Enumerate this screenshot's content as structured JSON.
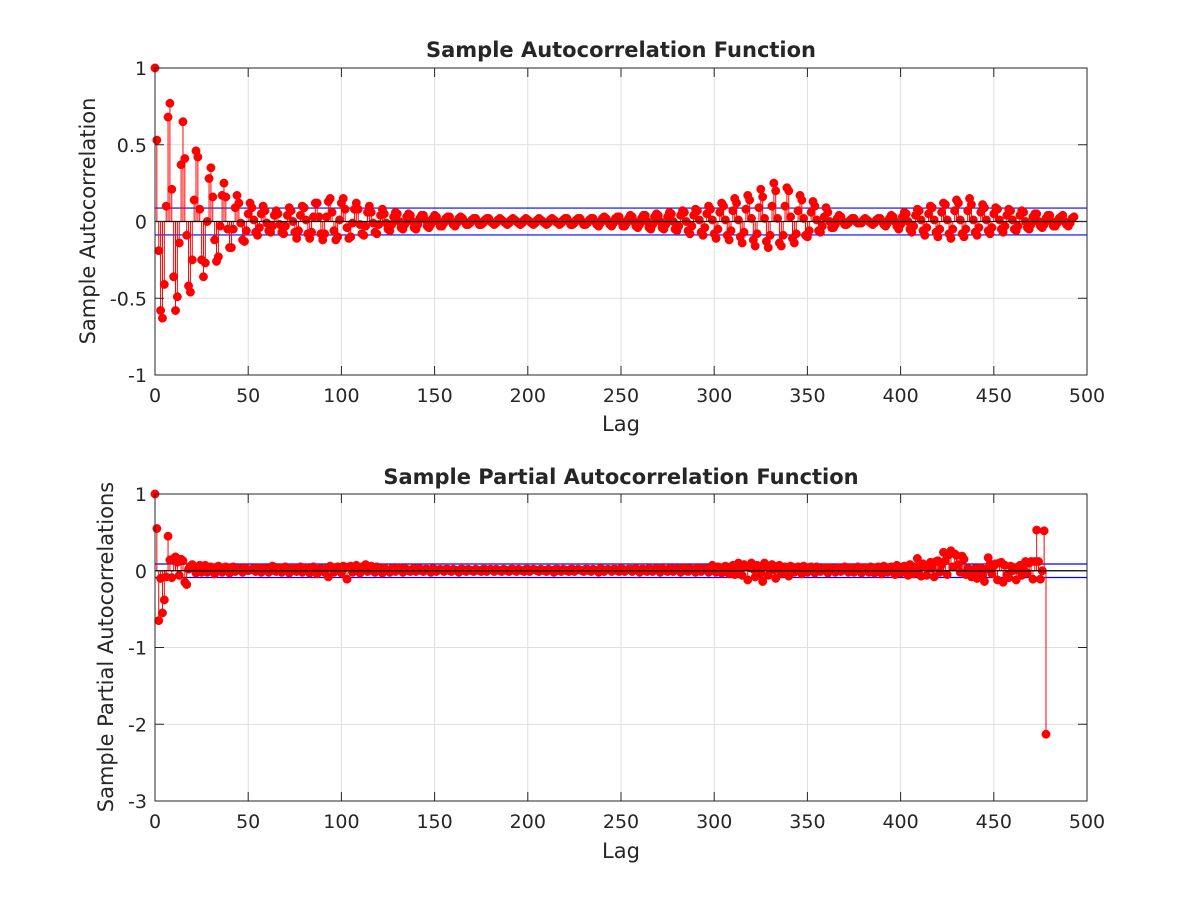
{
  "figure": {
    "background": "#ffffff",
    "colors": {
      "stem": "#ff0000",
      "bounds": "#0000ff",
      "grid": "#dfdfdf",
      "axis": "#262626",
      "zero_line": "#000000"
    }
  },
  "chart_data": [
    {
      "type": "stem",
      "title": "Sample Autocorrelation Function",
      "xlabel": "Lag",
      "ylabel": "Sample Autocorrelation",
      "xlim": [
        0,
        500
      ],
      "ylim": [
        -1,
        1
      ],
      "x_ticks": [
        0,
        50,
        100,
        150,
        200,
        250,
        300,
        350,
        400,
        450,
        500
      ],
      "x_tick_labels": [
        "0",
        "50",
        "100",
        "150",
        "200",
        "250",
        "300",
        "350",
        "400",
        "450",
        "500"
      ],
      "y_ticks": [
        -1,
        -0.5,
        0,
        0.5,
        1
      ],
      "y_tick_labels": [
        "-1",
        "-0.5",
        "0",
        "0.5",
        "1"
      ],
      "grid": true,
      "confidence_bound": 0.0877,
      "series": [
        {
          "lag_start": 0,
          "values": [
            1.0,
            0.53,
            -0.19,
            -0.58,
            -0.63,
            -0.41,
            0.1,
            0.68,
            0.77,
            0.21,
            -0.36,
            -0.58,
            -0.49,
            -0.14,
            0.37,
            0.65,
            0.41,
            -0.09,
            -0.42,
            -0.46,
            -0.25,
            0.14,
            0.46,
            0.42,
            0.08,
            -0.25,
            -0.36,
            -0.27,
            0.0,
            0.28,
            0.35,
            0.16,
            -0.12,
            -0.26,
            -0.23,
            -0.03,
            0.17,
            0.25,
            0.16,
            -0.05,
            -0.17,
            -0.17,
            -0.05,
            0.09,
            0.17,
            0.12,
            -0.01,
            -0.12,
            -0.13,
            -0.06,
            0.05,
            0.12,
            0.09,
            0.01,
            -0.07,
            -0.09,
            -0.04,
            0.05,
            0.1,
            0.07,
            -0.01,
            -0.06,
            -0.07,
            -0.03,
            0.04,
            0.07,
            0.05,
            -0.02,
            -0.07,
            -0.08,
            -0.03,
            0.04,
            0.09,
            0.07,
            0.0,
            -0.07,
            -0.11,
            -0.06,
            0.04,
            0.1,
            0.09,
            0.01,
            -0.08,
            -0.11,
            -0.07,
            0.03,
            0.12,
            0.12,
            0.03,
            -0.08,
            -0.12,
            -0.08,
            0.03,
            0.13,
            0.15,
            0.06,
            -0.06,
            -0.12,
            -0.1,
            0.01,
            0.12,
            0.15,
            0.08,
            -0.04,
            -0.11,
            -0.1,
            -0.01,
            0.08,
            0.12,
            0.08,
            -0.02,
            -0.08,
            -0.09,
            -0.03,
            0.06,
            0.1,
            0.06,
            -0.01,
            -0.07,
            -0.08,
            -0.02,
            0.04,
            0.08,
            0.05,
            -0.01,
            -0.05,
            -0.06,
            -0.02,
            0.03,
            0.06,
            0.05,
            0.0,
            -0.04,
            -0.05,
            -0.02,
            0.03,
            0.05,
            0.04,
            0.0,
            -0.04,
            -0.05,
            -0.02,
            0.02,
            0.04,
            0.04,
            0.01,
            -0.03,
            -0.04,
            -0.02,
            0.02,
            0.04,
            0.03,
            0.0,
            -0.03,
            -0.03,
            -0.01,
            0.02,
            0.03,
            0.03,
            0.0,
            -0.02,
            -0.03,
            -0.01,
            0.02,
            0.03,
            0.02,
            0.0,
            -0.02,
            -0.02,
            -0.01,
            0.01,
            0.02,
            0.02,
            0.0,
            -0.02,
            -0.02,
            -0.01,
            0.01,
            0.02,
            0.02,
            0.0,
            -0.01,
            -0.02,
            -0.01,
            0.01,
            0.02,
            0.01,
            0.0,
            -0.01,
            -0.02,
            -0.01,
            0.01,
            0.02,
            0.01,
            0.0,
            -0.01,
            -0.02,
            -0.01,
            0.01,
            0.02,
            0.01,
            0.0,
            -0.01,
            -0.02,
            -0.01,
            0.01,
            0.02,
            0.01,
            0.0,
            -0.01,
            -0.02,
            -0.01,
            0.01,
            0.02,
            0.01,
            0.0,
            -0.01,
            -0.02,
            -0.01,
            0.01,
            0.02,
            0.02,
            0.0,
            -0.02,
            -0.02,
            -0.01,
            0.01,
            0.02,
            0.02,
            0.0,
            -0.02,
            -0.02,
            -0.01,
            0.01,
            0.02,
            0.02,
            0.0,
            -0.02,
            -0.03,
            -0.01,
            0.02,
            0.03,
            0.02,
            0.0,
            -0.02,
            -0.03,
            -0.01,
            0.02,
            0.03,
            0.03,
            0.0,
            -0.03,
            -0.03,
            -0.01,
            0.02,
            0.04,
            0.03,
            0.0,
            -0.03,
            -0.04,
            -0.02,
            0.02,
            0.04,
            0.04,
            0.0,
            -0.04,
            -0.05,
            -0.02,
            0.03,
            0.05,
            0.04,
            0.0,
            -0.04,
            -0.05,
            -0.02,
            0.03,
            0.06,
            0.05,
            0.0,
            -0.05,
            -0.06,
            -0.03,
            0.04,
            0.07,
            0.06,
            0.0,
            -0.06,
            -0.08,
            -0.03,
            0.04,
            0.08,
            0.07,
            0.01,
            -0.07,
            -0.09,
            -0.04,
            0.05,
            0.1,
            0.08,
            0.01,
            -0.08,
            -0.11,
            -0.05,
            0.06,
            0.12,
            0.1,
            0.01,
            -0.09,
            -0.12,
            -0.06,
            0.07,
            0.15,
            0.12,
            0.01,
            -0.1,
            -0.14,
            -0.07,
            0.08,
            0.17,
            0.14,
            0.02,
            -0.12,
            -0.16,
            -0.08,
            0.09,
            0.21,
            0.16,
            0.02,
            -0.13,
            -0.17,
            -0.09,
            0.1,
            0.25,
            0.2,
            0.02,
            -0.14,
            -0.16,
            -0.09,
            0.1,
            0.22,
            0.2,
            0.03,
            -0.11,
            -0.14,
            -0.08,
            0.07,
            0.17,
            0.14,
            0.02,
            -0.09,
            -0.1,
            -0.06,
            0.06,
            0.13,
            0.1,
            0.01,
            -0.06,
            -0.07,
            -0.03,
            0.03,
            0.09,
            0.06,
            0.0,
            -0.04,
            -0.04,
            -0.02,
            0.02,
            0.04,
            0.03,
            0.0,
            -0.02,
            -0.02,
            -0.01,
            0.01,
            0.02,
            0.02,
            0.0,
            -0.01,
            -0.01,
            -0.01,
            0.01,
            0.02,
            0.01,
            0.0,
            -0.01,
            -0.02,
            -0.01,
            0.01,
            0.02,
            0.02,
            0.0,
            -0.02,
            -0.03,
            -0.01,
            0.02,
            0.04,
            0.03,
            0.0,
            -0.03,
            -0.05,
            -0.02,
            0.03,
            0.06,
            0.05,
            0.0,
            -0.05,
            -0.07,
            -0.03,
            0.04,
            0.08,
            0.07,
            0.01,
            -0.06,
            -0.09,
            -0.04,
            0.05,
            0.1,
            0.09,
            0.01,
            -0.07,
            -0.1,
            -0.05,
            0.06,
            0.12,
            0.11,
            0.01,
            -0.08,
            -0.11,
            -0.05,
            0.07,
            0.14,
            0.12,
            0.01,
            -0.08,
            -0.1,
            -0.05,
            0.07,
            0.15,
            0.11,
            0.01,
            -0.07,
            -0.09,
            -0.04,
            0.06,
            0.11,
            0.09,
            0.01,
            -0.06,
            -0.08,
            -0.04,
            0.05,
            0.09,
            0.08,
            0.01,
            -0.05,
            -0.07,
            -0.03,
            0.04,
            0.08,
            0.07,
            0.01,
            -0.05,
            -0.06,
            -0.03,
            0.04,
            0.07,
            0.06,
            0.0,
            -0.04,
            -0.05,
            -0.02,
            0.03,
            0.05,
            0.05,
            0.0,
            -0.03,
            -0.04,
            -0.02,
            0.02,
            0.04,
            0.04,
            0.0,
            -0.03,
            -0.03,
            -0.01,
            0.02,
            0.03,
            0.04,
            0.0,
            -0.02,
            -0.03,
            -0.01,
            0.02,
            0.03
          ]
        }
      ]
    },
    {
      "type": "stem",
      "title": "Sample Partial Autocorrelation Function",
      "xlabel": "Lag",
      "ylabel": "Sample Partial Autocorrelations",
      "xlim": [
        0,
        500
      ],
      "ylim": [
        -3,
        1
      ],
      "x_ticks": [
        0,
        50,
        100,
        150,
        200,
        250,
        300,
        350,
        400,
        450,
        500
      ],
      "x_tick_labels": [
        "0",
        "50",
        "100",
        "150",
        "200",
        "250",
        "300",
        "350",
        "400",
        "450",
        "500"
      ],
      "y_ticks": [
        -3,
        -2,
        -1,
        0,
        1
      ],
      "y_tick_labels": [
        "-3",
        "-2",
        "-1",
        "0",
        "1"
      ],
      "grid": true,
      "confidence_bound": 0.0877,
      "series": [
        {
          "lag_start": 0,
          "values": [
            1.0,
            0.55,
            -0.65,
            -0.1,
            -0.55,
            -0.38,
            -0.08,
            0.45,
            0.14,
            -0.09,
            0.16,
            0.18,
            0.11,
            -0.06,
            0.15,
            0.13,
            -0.15,
            -0.18,
            0.02,
            0.06,
            0.08,
            0.04,
            -0.03,
            0.05,
            0.07,
            -0.02,
            0.06,
            0.07,
            -0.02,
            0.03,
            0.05,
            0.01,
            -0.04,
            0.03,
            0.06,
            0.0,
            -0.02,
            0.04,
            0.05,
            0.0,
            -0.03,
            0.04,
            0.05,
            -0.01,
            0.02,
            0.03,
            0.01,
            -0.02,
            0.04,
            0.03,
            0.0,
            0.01,
            0.02,
            0.03,
            -0.01,
            0.03,
            0.04,
            -0.02,
            0.02,
            0.03,
            0.01,
            -0.02,
            0.04,
            0.06,
            0.0,
            -0.01,
            0.03,
            0.04,
            -0.02,
            0.03,
            0.05,
            0.01,
            -0.03,
            0.02,
            0.04,
            0.0,
            -0.01,
            0.03,
            0.05,
            -0.02,
            0.02,
            0.04,
            0.01,
            -0.03,
            0.03,
            0.05,
            0.0,
            -0.04,
            0.02,
            0.03,
            0.01,
            -0.02,
            0.03,
            -0.08,
            0.06,
            0.03,
            -0.02,
            0.04,
            0.05,
            0.0,
            -0.03,
            0.06,
            0.04,
            -0.11,
            0.05,
            0.06,
            -0.02,
            0.03,
            0.07,
            0.01,
            -0.03,
            0.05,
            0.04,
            0.08,
            -0.01,
            0.04,
            0.06,
            0.0,
            -0.02,
            0.05,
            0.03,
            0.01,
            -0.03,
            0.04,
            0.02,
            0.0,
            -0.02,
            0.03,
            0.03,
            -0.01,
            0.02,
            0.04,
            0.01,
            -0.02,
            0.03,
            0.02,
            0.0,
            -0.01,
            0.02,
            0.03,
            -0.01,
            0.02,
            0.03,
            0.0,
            -0.01,
            0.02,
            0.02,
            0.0,
            -0.02,
            0.03,
            0.02,
            -0.01,
            0.01,
            0.02,
            0.01,
            -0.01,
            0.02,
            0.02,
            0.0,
            -0.01,
            0.02,
            0.01,
            0.0,
            -0.02,
            0.02,
            0.02,
            0.0,
            -0.01,
            0.02,
            0.01,
            0.0,
            -0.01,
            0.02,
            0.01,
            0.0,
            -0.01,
            0.02,
            0.02,
            -0.01,
            0.01,
            0.02,
            0.01,
            -0.01,
            0.02,
            0.01,
            0.0,
            -0.01,
            0.02,
            0.01,
            0.0,
            -0.01,
            0.02,
            0.02,
            0.0,
            -0.01,
            0.02,
            0.01,
            0.0,
            -0.01,
            0.02,
            0.02,
            -0.01,
            0.01,
            0.02,
            0.01,
            0.0,
            -0.01,
            0.02,
            0.01,
            0.0,
            -0.01,
            0.02,
            0.01,
            0.0,
            -0.02,
            0.02,
            0.02,
            0.0,
            -0.01,
            0.02,
            0.01,
            0.0,
            -0.01,
            0.02,
            0.02,
            -0.01,
            0.01,
            0.02,
            0.01,
            0.0,
            -0.01,
            0.02,
            0.02,
            0.0,
            -0.01,
            0.02,
            0.01,
            0.0,
            -0.02,
            0.03,
            0.02,
            -0.01,
            0.01,
            0.02,
            0.01,
            -0.01,
            0.02,
            0.02,
            0.0,
            -0.01,
            0.03,
            0.02,
            -0.01,
            0.01,
            0.02,
            0.02,
            -0.01,
            0.02,
            0.03,
            0.0,
            -0.02,
            0.02,
            0.02,
            0.0,
            -0.01,
            0.03,
            0.02,
            -0.01,
            0.02,
            0.03,
            0.01,
            -0.02,
            0.03,
            0.02,
            0.0,
            -0.01,
            0.03,
            0.03,
            -0.01,
            0.01,
            0.03,
            0.02,
            -0.02,
            0.03,
            0.04,
            0.0,
            -0.01,
            0.03,
            0.02,
            0.01,
            -0.02,
            0.04,
            0.03,
            -0.01,
            0.02,
            0.03,
            0.02,
            -0.02,
            0.04,
            0.07,
            0.0,
            -0.02,
            0.05,
            0.04,
            -0.03,
            0.02,
            0.06,
            0.02,
            -0.04,
            0.05,
            0.07,
            -0.05,
            0.03,
            0.1,
            0.01,
            -0.06,
            0.08,
            0.06,
            -0.12,
            0.04,
            0.1,
            0.02,
            -0.08,
            0.07,
            0.06,
            -0.03,
            -0.14,
            0.1,
            0.05,
            -0.06,
            0.03,
            0.08,
            0.01,
            -0.1,
            0.06,
            0.07,
            -0.04,
            0.02,
            0.05,
            0.03,
            -0.07,
            0.06,
            0.04,
            -0.02,
            0.03,
            0.05,
            0.01,
            -0.04,
            0.06,
            0.03,
            -0.02,
            0.04,
            0.05,
            0.0,
            -0.03,
            0.05,
            0.03,
            -0.01,
            0.02,
            0.04,
            0.02,
            -0.03,
            0.04,
            0.03,
            0.0,
            -0.02,
            0.04,
            0.03,
            -0.01,
            0.03,
            0.05,
            0.01,
            -0.02,
            0.04,
            0.03,
            -0.02,
            0.02,
            0.05,
            0.02,
            -0.03,
            0.04,
            0.04,
            0.0,
            -0.02,
            0.05,
            0.03,
            -0.03,
            0.03,
            0.05,
            0.01,
            -0.04,
            0.06,
            0.04,
            -0.02,
            0.03,
            0.05,
            0.02,
            -0.05,
            0.07,
            0.05,
            -0.03,
            0.04,
            0.06,
            0.01,
            -0.06,
            0.08,
            0.06,
            -0.04,
            0.05,
            0.16,
            0.02,
            -0.07,
            0.09,
            0.05,
            -0.06,
            0.04,
            0.11,
            0.03,
            -0.08,
            0.12,
            0.13,
            -0.02,
            0.08,
            0.24,
            0.13,
            -0.05,
            0.21,
            0.26,
            0.05,
            0.22,
            0.2,
            0.08,
            -0.02,
            0.19,
            0.15,
            -0.05,
            0.03,
            0.02,
            -0.08,
            -0.03,
            0.03,
            -0.1,
            0.01,
            0.04,
            -0.06,
            -0.14,
            0.02,
            0.17,
            0.09,
            -0.04,
            0.06,
            0.09,
            -0.12,
            0.1,
            0.11,
            -0.15,
            0.07,
            -0.06,
            -0.09,
            0.06,
            0.0,
            0.04,
            -0.12,
            0.01,
            0.07,
            -0.06,
            0.02,
            0.12,
            -0.03,
            0.1,
            0.12,
            -0.11,
            0.12,
            0.53,
            0.12,
            -0.11,
            0.0,
            0.52,
            -2.13
          ]
        }
      ]
    }
  ]
}
